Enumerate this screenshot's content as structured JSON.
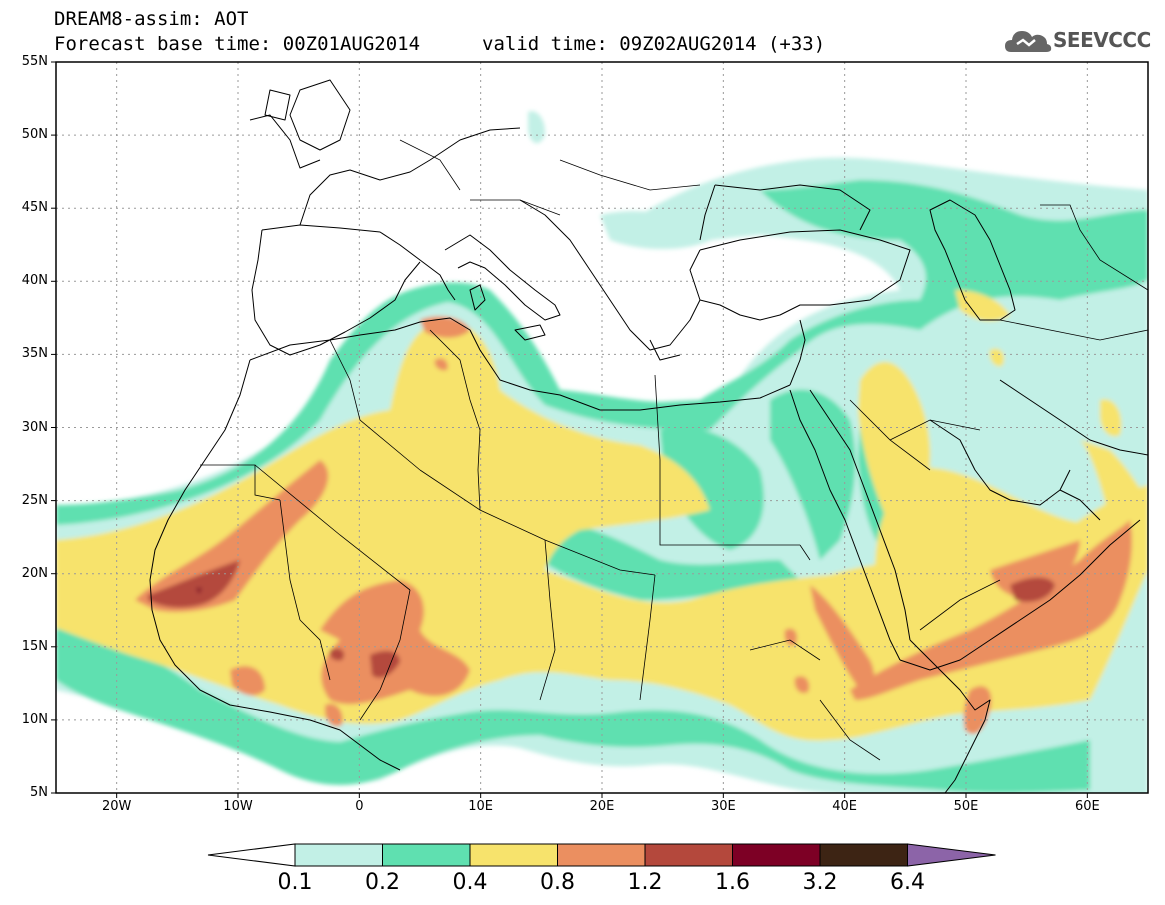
{
  "header": {
    "model_line": "DREAM8-assim: AOT",
    "base_time": "Forecast base time: 00Z01AUG2014",
    "valid_time": "valid time: 09Z02AUG2014 (+33)",
    "logo_text": "SEEVCCC"
  },
  "axes": {
    "lat_labels": [
      "55N",
      "50N",
      "45N",
      "40N",
      "35N",
      "30N",
      "25N",
      "20N",
      "15N",
      "10N",
      "5N"
    ],
    "lon_labels": [
      "20W",
      "10W",
      "0",
      "10E",
      "20E",
      "30E",
      "40E",
      "50E",
      "60E"
    ]
  },
  "legend": {
    "bounds": [
      "0.1",
      "0.2",
      "0.4",
      "0.8",
      "1.2",
      "1.6",
      "3.2",
      "6.4"
    ],
    "colors": [
      "#ffffff",
      "#c2f0e6",
      "#5fe0b0",
      "#f7e36c",
      "#eb8f60",
      "#b4483c",
      "#7d0025",
      "#3d2414",
      "#8c64a8"
    ]
  },
  "colors": {
    "land": "#ffffff",
    "border": "#000000",
    "grid": "#9a9a9a"
  }
}
